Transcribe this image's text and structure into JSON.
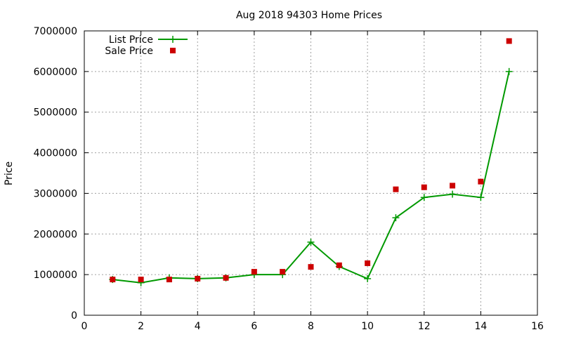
{
  "chart_data": {
    "type": "line",
    "title": "Aug 2018 94303 Home Prices",
    "xlabel": "",
    "ylabel": "Price",
    "xlim": [
      0,
      16
    ],
    "ylim": [
      0,
      7000000
    ],
    "xticks": [
      0,
      2,
      4,
      6,
      8,
      10,
      12,
      14,
      16
    ],
    "yticks": [
      0,
      1000000,
      2000000,
      3000000,
      4000000,
      5000000,
      6000000,
      7000000
    ],
    "xtick_labels": [
      "0",
      "2",
      "4",
      "6",
      "8",
      "10",
      "12",
      "14",
      "16"
    ],
    "ytick_labels": [
      "0",
      "1000000",
      "2000000",
      "3000000",
      "4000000",
      "5000000",
      "6000000",
      "7000000"
    ],
    "grid": true,
    "legend_position": "top-left",
    "series": [
      {
        "name": "List Price",
        "style": "line-plus",
        "color": "#009900",
        "x": [
          1,
          2,
          3,
          4,
          5,
          6,
          7,
          8,
          9,
          10,
          11,
          12,
          13,
          14,
          15
        ],
        "y": [
          880000,
          800000,
          920000,
          900000,
          920000,
          1000000,
          1000000,
          1800000,
          1200000,
          900000,
          2400000,
          2900000,
          2980000,
          2900000,
          6000000
        ]
      },
      {
        "name": "Sale Price",
        "style": "square-points",
        "color": "#cc0000",
        "x": [
          1,
          2,
          3,
          4,
          5,
          6,
          7,
          8,
          9,
          10,
          11,
          12,
          13,
          14,
          15
        ],
        "y": [
          880000,
          880000,
          880000,
          900000,
          920000,
          1070000,
          1070000,
          1190000,
          1230000,
          1280000,
          3100000,
          3150000,
          3190000,
          3290000,
          6750000
        ]
      }
    ]
  }
}
